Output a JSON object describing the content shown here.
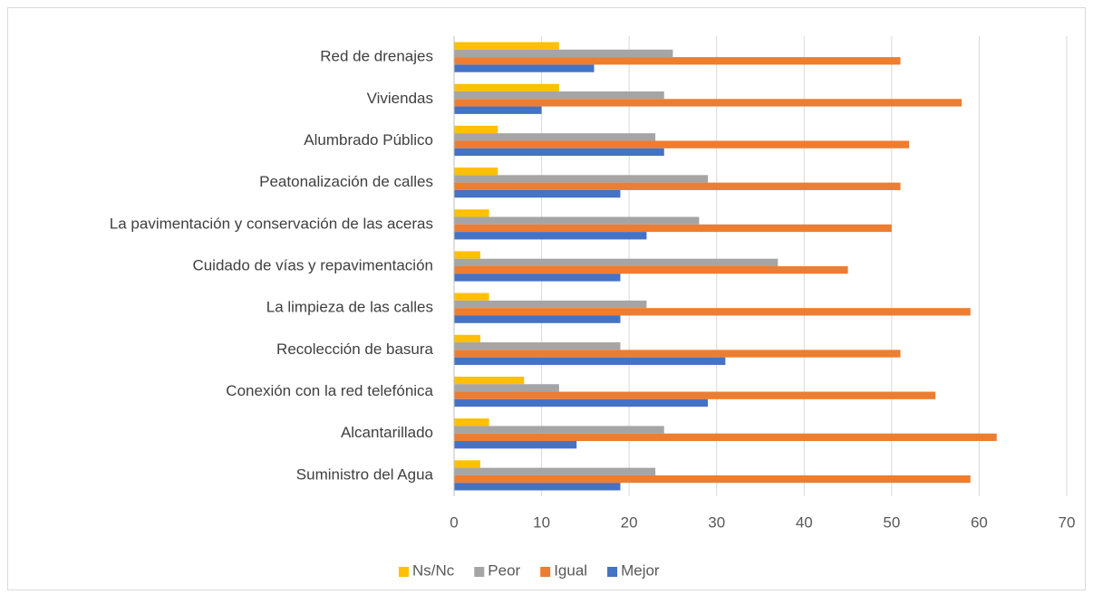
{
  "chart_data": {
    "type": "hbar",
    "categories": [
      "Suministro del Agua",
      "Alcantarillado",
      "Conexión con la red telefónica",
      "Recolección de basura",
      "La limpieza de las calles",
      "Cuidado de vías y repavimentación",
      "La pavimentación y conservación de las aceras",
      "Peatonalización de calles",
      "Alumbrado Público",
      "Viviendas",
      "Red de drenajes"
    ],
    "series": [
      {
        "name": "Ns/Nc",
        "color": "#ffc000",
        "values": [
          3,
          4,
          8,
          3,
          4,
          3,
          4,
          5,
          5,
          12,
          12
        ]
      },
      {
        "name": "Peor",
        "color": "#a5a5a5",
        "values": [
          23,
          24,
          12,
          19,
          22,
          37,
          28,
          29,
          23,
          24,
          25
        ]
      },
      {
        "name": "Igual",
        "color": "#ed7d31",
        "values": [
          59,
          62,
          55,
          51,
          59,
          45,
          50,
          51,
          52,
          58,
          51
        ]
      },
      {
        "name": "Mejor",
        "color": "#4472c4",
        "values": [
          19,
          14,
          29,
          31,
          19,
          19,
          22,
          19,
          24,
          10,
          16
        ]
      }
    ],
    "xlim": [
      0,
      70
    ],
    "xticks": [
      0,
      10,
      20,
      30,
      40,
      50,
      60,
      70
    ],
    "grid": true,
    "legend": "bottom"
  }
}
